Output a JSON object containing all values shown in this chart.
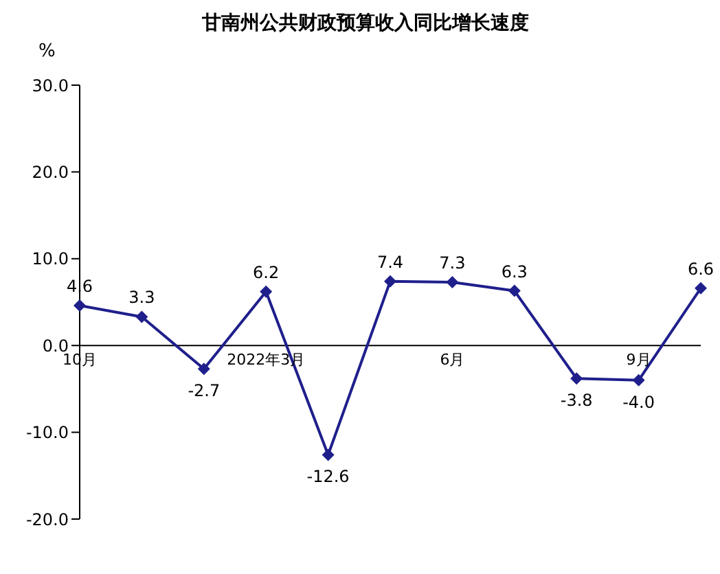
{
  "chart_data": {
    "type": "line",
    "title": "甘南州公共财政预算收入同比增长速度",
    "ylabel": "%",
    "categories": [
      "10月",
      null,
      null,
      "2022年3月",
      null,
      null,
      "6月",
      null,
      null,
      "9月",
      null
    ],
    "series": [
      {
        "color": "#1f1f8c",
        "values": [
          4.6,
          3.3,
          -2.7,
          6.2,
          -12.6,
          7.4,
          7.3,
          6.3,
          -3.8,
          -4.0,
          6.6
        ],
        "value_labels": [
          "4.6",
          "3.3",
          "-2.7",
          "6.2",
          "-12.6",
          "7.4",
          "7.3",
          "6.3",
          "-3.8",
          "-4.0",
          "6.6"
        ]
      }
    ],
    "ylim": [
      -20,
      30
    ],
    "yticks": [
      {
        "value": -20,
        "label": "-20.0"
      },
      {
        "value": -10,
        "label": "-10.0"
      },
      {
        "value": 0,
        "label": "0.0"
      },
      {
        "value": 10,
        "label": "10.0"
      },
      {
        "value": 20,
        "label": "20.0"
      },
      {
        "value": 30,
        "label": "30.0"
      }
    ],
    "marker": "diamond",
    "line_style": "solid",
    "grid": false,
    "legend": false
  }
}
